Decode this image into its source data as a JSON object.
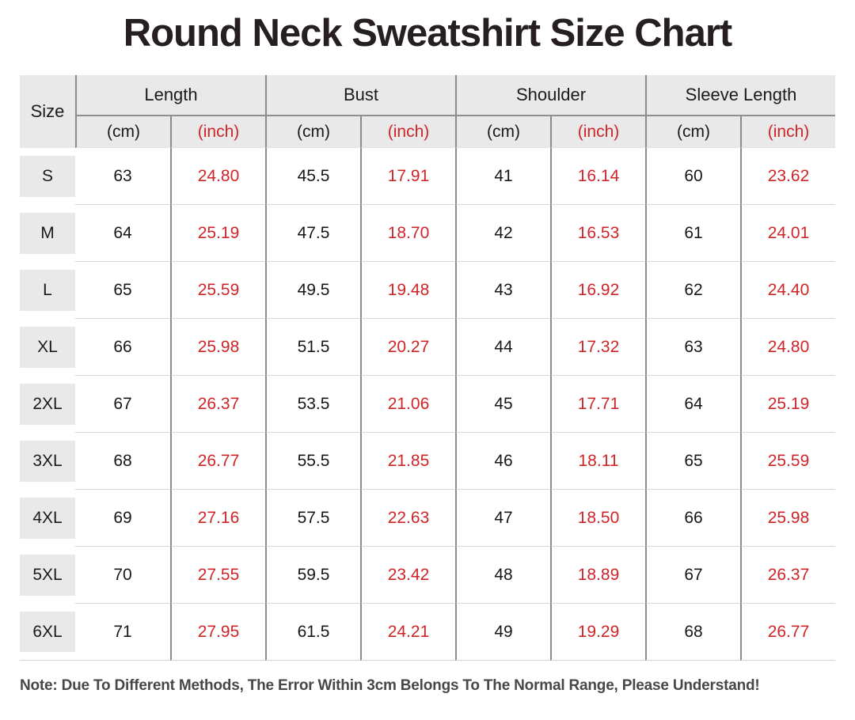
{
  "title": "Round Neck Sweatshirt Size Chart",
  "note": "Note: Due To Different Methods, The Error Within 3cm Belongs To The Normal Range, Please Understand!",
  "colors": {
    "accent_red": "#cf2428",
    "header_bg": "#e9e9e9",
    "grid_line_dark": "#8b8b8b",
    "grid_line_light": "#d7d7d7",
    "text_dark": "#171717"
  },
  "table": {
    "size_header": "Size",
    "groups": [
      "Length",
      "Bust",
      "Shoulder",
      "Sleeve Length"
    ],
    "unit_cm": "(cm)",
    "unit_inch": "(inch)"
  },
  "chart_data": {
    "type": "table",
    "title": "Round Neck Sweatshirt Size Chart",
    "columns": [
      "Size",
      "Length (cm)",
      "Length (inch)",
      "Bust (cm)",
      "Bust (inch)",
      "Shoulder (cm)",
      "Shoulder (inch)",
      "Sleeve Length (cm)",
      "Sleeve Length (inch)"
    ],
    "rows": [
      [
        "S",
        "63",
        "24.80",
        "45.5",
        "17.91",
        "41",
        "16.14",
        "60",
        "23.62"
      ],
      [
        "M",
        "64",
        "25.19",
        "47.5",
        "18.70",
        "42",
        "16.53",
        "61",
        "24.01"
      ],
      [
        "L",
        "65",
        "25.59",
        "49.5",
        "19.48",
        "43",
        "16.92",
        "62",
        "24.40"
      ],
      [
        "XL",
        "66",
        "25.98",
        "51.5",
        "20.27",
        "44",
        "17.32",
        "63",
        "24.80"
      ],
      [
        "2XL",
        "67",
        "26.37",
        "53.5",
        "21.06",
        "45",
        "17.71",
        "64",
        "25.19"
      ],
      [
        "3XL",
        "68",
        "26.77",
        "55.5",
        "21.85",
        "46",
        "18.11",
        "65",
        "25.59"
      ],
      [
        "4XL",
        "69",
        "27.16",
        "57.5",
        "22.63",
        "47",
        "18.50",
        "66",
        "25.98"
      ],
      [
        "5XL",
        "70",
        "27.55",
        "59.5",
        "23.42",
        "48",
        "18.89",
        "67",
        "26.37"
      ],
      [
        "6XL",
        "71",
        "27.95",
        "61.5",
        "24.21",
        "49",
        "19.29",
        "68",
        "26.77"
      ]
    ]
  }
}
